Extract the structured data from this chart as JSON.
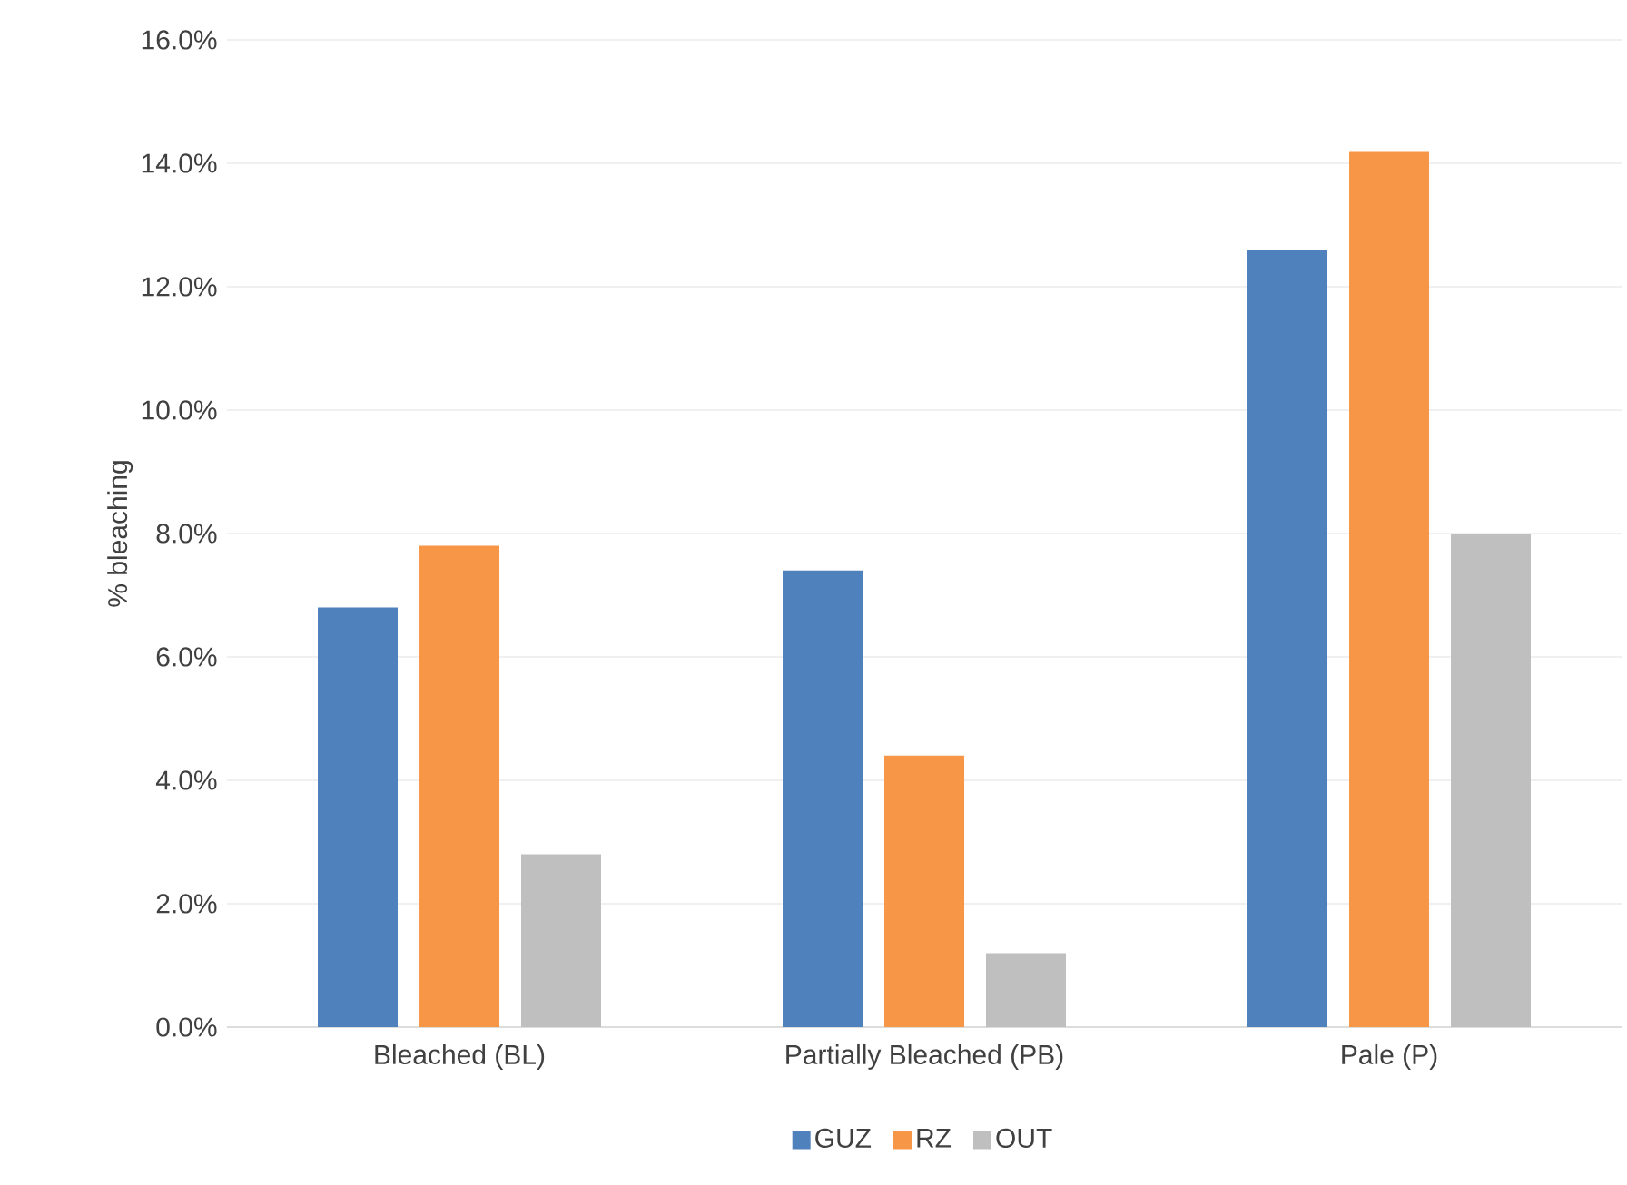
{
  "chart_data": {
    "type": "bar",
    "ylabel": "% bleaching",
    "categories": [
      "Bleached (BL)",
      "Partially Bleached (PB)",
      "Pale (P)"
    ],
    "series": [
      {
        "name": "GUZ",
        "color": "#4f81bd",
        "values": [
          6.8,
          7.4,
          12.6
        ]
      },
      {
        "name": "RZ",
        "color": "#f79646",
        "values": [
          7.8,
          4.4,
          14.2
        ]
      },
      {
        "name": "OUT",
        "color": "#bfbfbf",
        "values": [
          2.8,
          1.2,
          8.0
        ]
      }
    ],
    "ylim": [
      0,
      16
    ],
    "yticks": [
      {
        "value": 0,
        "label": "0.0%"
      },
      {
        "value": 2,
        "label": "2.0%"
      },
      {
        "value": 4,
        "label": "4.0%"
      },
      {
        "value": 6,
        "label": "6.0%"
      },
      {
        "value": 8,
        "label": "8.0%"
      },
      {
        "value": 10,
        "label": "10.0%"
      },
      {
        "value": 12,
        "label": "12.0%"
      },
      {
        "value": 14,
        "label": "14.0%"
      },
      {
        "value": 16,
        "label": "16.0%"
      }
    ],
    "grid": "y",
    "legend": "bottom"
  }
}
